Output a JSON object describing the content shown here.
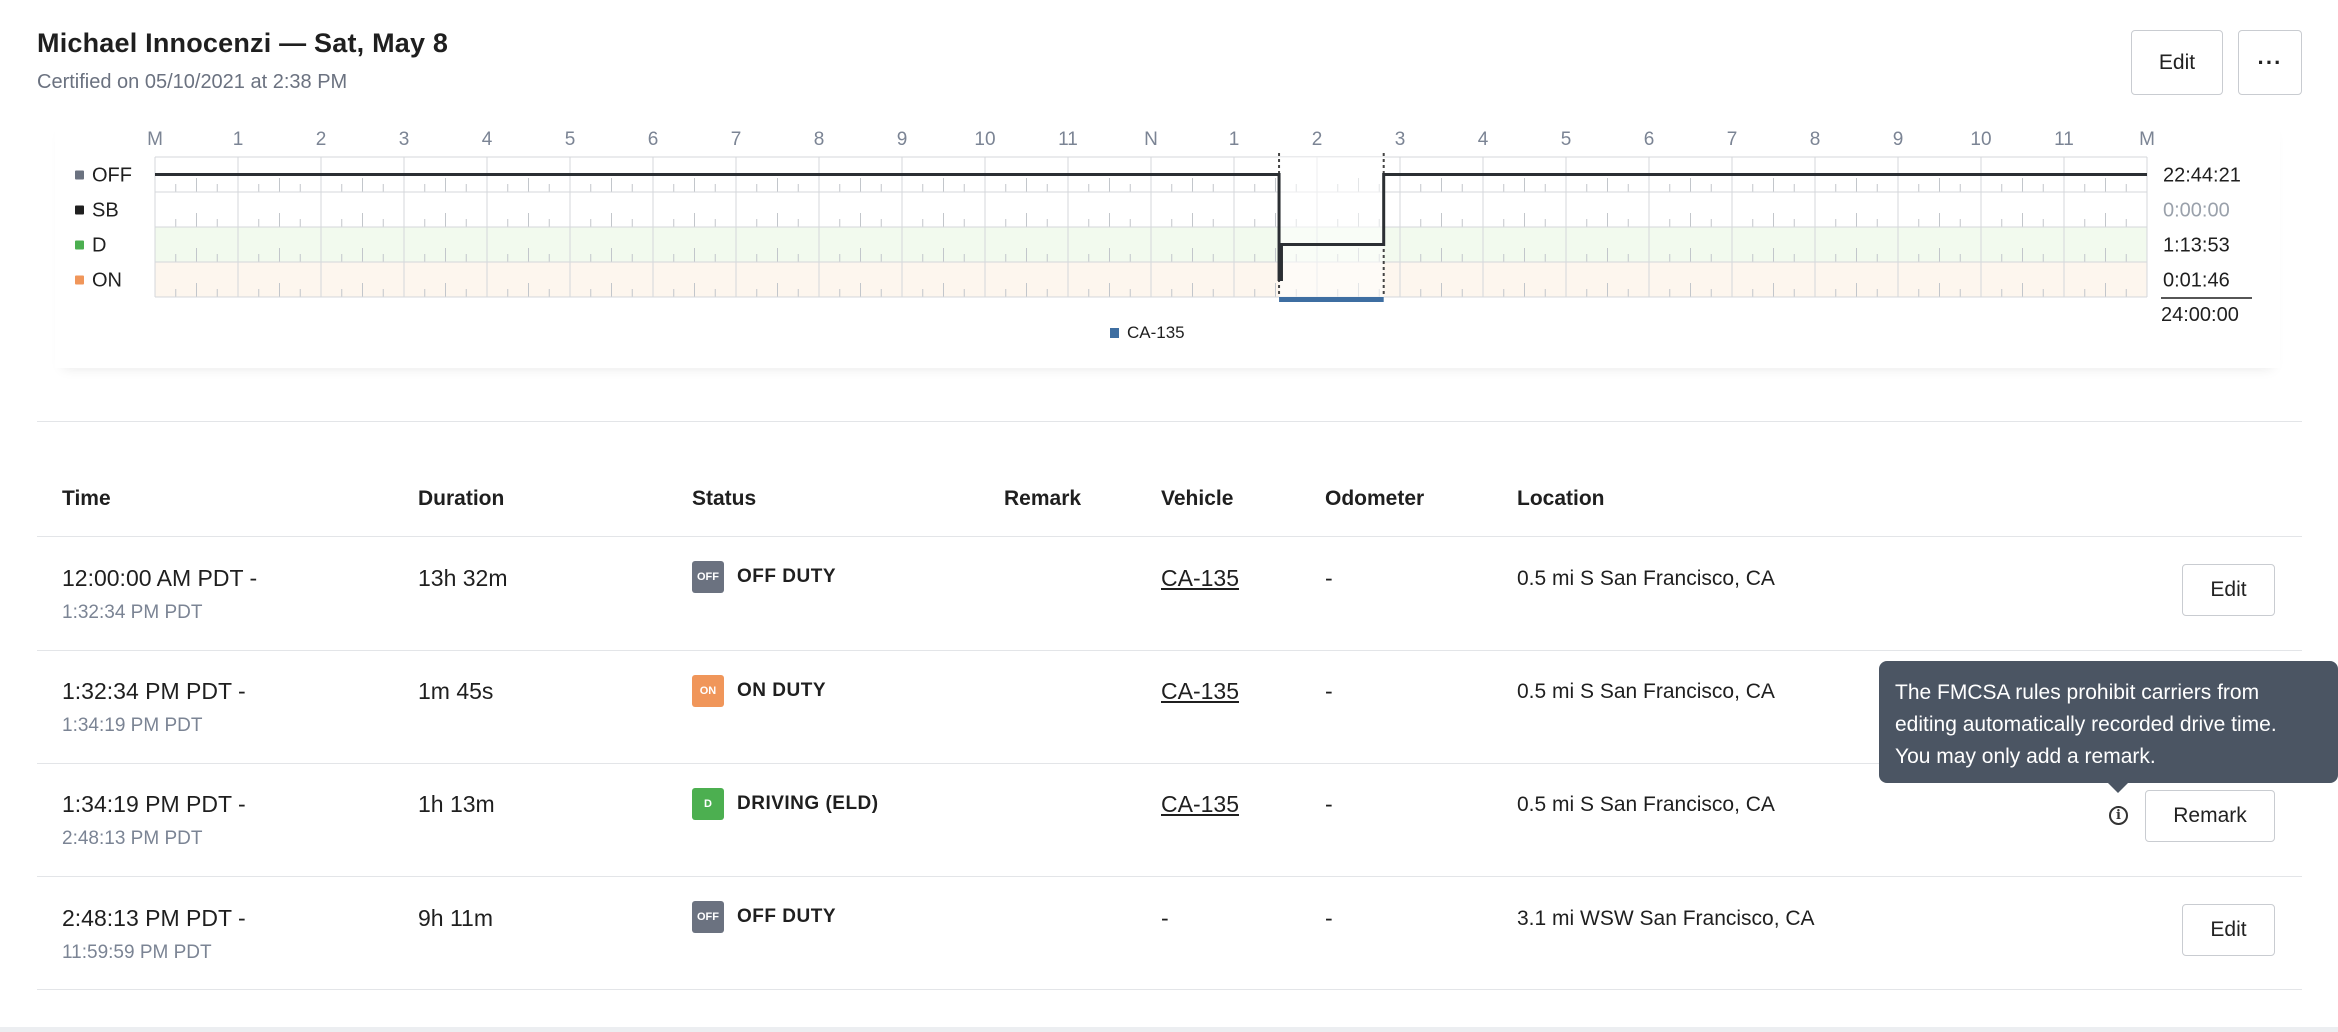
{
  "header": {
    "title": "Michael Innocenzi — Sat, May 8",
    "subtitle": "Certified on 05/10/2021 at 2:38 PM",
    "edit_label": "Edit",
    "more_label": "···"
  },
  "chart_data": {
    "type": "line",
    "hour_labels": [
      "M",
      "1",
      "2",
      "3",
      "4",
      "5",
      "6",
      "7",
      "8",
      "9",
      "10",
      "11",
      "N",
      "1",
      "2",
      "3",
      "4",
      "5",
      "6",
      "7",
      "8",
      "9",
      "10",
      "11",
      "M"
    ],
    "rows": [
      {
        "label": "OFF",
        "color": "#6b7280",
        "total": "22:44:21"
      },
      {
        "label": "SB",
        "color": "#1f1f1f",
        "total": "0:00:00"
      },
      {
        "label": "D",
        "color": "#4caf50",
        "total": "1:13:53"
      },
      {
        "label": "ON",
        "color": "#f0965a",
        "total": "0:01:46"
      }
    ],
    "grand_total": "24:00:00",
    "segments": [
      {
        "status": "OFF",
        "start": 0.0,
        "end": 13.5428
      },
      {
        "status": "ON",
        "start": 13.5428,
        "end": 13.5719
      },
      {
        "status": "D",
        "start": 13.5719,
        "end": 14.8036
      },
      {
        "status": "OFF",
        "start": 14.8036,
        "end": 24.0
      }
    ],
    "vehicle_band": {
      "label": "CA-135",
      "start": 13.5428,
      "end": 14.8036,
      "color": "#3e6ea1"
    },
    "row_fills": {
      "D": "#f2faee",
      "ON": "#fdf6ee"
    }
  },
  "table": {
    "headers": [
      "Time",
      "Duration",
      "Status",
      "Remark",
      "Vehicle",
      "Odometer",
      "Location"
    ],
    "rows": [
      {
        "start": "12:00:00 AM PDT -",
        "end": "1:32:34 PM PDT",
        "duration": "13h 32m",
        "badge": "OFF",
        "badge_color": "#6b7280",
        "status": "OFF DUTY",
        "remark": "",
        "vehicle": "CA-135",
        "odometer": "-",
        "location": "0.5 mi S San Francisco, CA",
        "action": "Edit"
      },
      {
        "start": "1:32:34 PM PDT -",
        "end": "1:34:19 PM PDT",
        "duration": "1m 45s",
        "badge": "ON",
        "badge_color": "#f0965a",
        "status": "ON DUTY",
        "remark": "",
        "vehicle": "CA-135",
        "odometer": "-",
        "location": "0.5 mi S San Francisco, CA",
        "action": ""
      },
      {
        "start": "1:34:19 PM PDT -",
        "end": "2:48:13 PM PDT",
        "duration": "1h 13m",
        "badge": "D",
        "badge_color": "#4caf50",
        "status": "DRIVING (ELD)",
        "remark": "",
        "vehicle": "CA-135",
        "odometer": "-",
        "location": "0.5 mi S San Francisco, CA",
        "action": "Remark"
      },
      {
        "start": "2:48:13 PM PDT -",
        "end": "11:59:59 PM PDT",
        "duration": "9h 11m",
        "badge": "OFF",
        "badge_color": "#6b7280",
        "status": "OFF DUTY",
        "remark": "",
        "vehicle": "-",
        "odometer": "-",
        "location": "3.1 mi WSW San Francisco, CA",
        "action": "Edit"
      }
    ]
  },
  "tooltip": {
    "lines": [
      "The FMCSA rules prohibit carriers from",
      "editing automatically recorded drive time.",
      "You may only add a remark."
    ],
    "icon": "info-icon"
  }
}
